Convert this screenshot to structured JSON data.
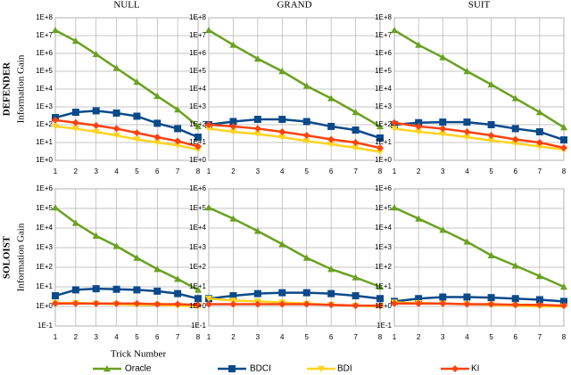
{
  "chart_data": [
    {
      "type": "line",
      "title": "NULL",
      "row_label": "DEFENDER",
      "ylabel": "Information Gain",
      "log": true,
      "grid": true,
      "x": [
        1,
        2,
        3,
        4,
        5,
        6,
        7,
        8
      ],
      "xlim": [
        1,
        8
      ],
      "xticks": [
        1,
        2,
        3,
        4,
        5,
        6,
        7,
        8
      ],
      "ylim": [
        1,
        100000000
      ],
      "yticks": [
        {
          "value": 1,
          "label": "1E+0"
        },
        {
          "value": 10,
          "label": "1E+1"
        },
        {
          "value": 100,
          "label": "1E+2"
        },
        {
          "value": 1000,
          "label": "1E+3"
        },
        {
          "value": 10000,
          "label": "1E+4"
        },
        {
          "value": 100000,
          "label": "1E+5"
        },
        {
          "value": 1000000,
          "label": "1E+6"
        },
        {
          "value": 10000000,
          "label": "1E+7"
        },
        {
          "value": 100000000,
          "label": "1E+8"
        }
      ],
      "series": [
        {
          "name": "Oracle",
          "color": "#6aa121",
          "values": [
            20000000,
            5000000,
            900000,
            150000,
            25000,
            4000,
            700,
            80
          ]
        },
        {
          "name": "BDCI",
          "color": "#0b4a8a",
          "values": [
            250,
            500,
            600,
            450,
            300,
            120,
            60,
            20
          ]
        },
        {
          "name": "BDI",
          "color": "#ffd320",
          "values": [
            80,
            60,
            40,
            25,
            15,
            10,
            7,
            4
          ]
        },
        {
          "name": "KI",
          "color": "#ff420e",
          "values": [
            180,
            130,
            90,
            60,
            35,
            20,
            12,
            6
          ]
        }
      ]
    },
    {
      "type": "line",
      "title": "GRAND",
      "log": true,
      "grid": true,
      "x": [
        1,
        2,
        3,
        4,
        5,
        6,
        7,
        8
      ],
      "xlim": [
        1,
        8
      ],
      "xticks": [
        1,
        2,
        3,
        4,
        5,
        6,
        7,
        8
      ],
      "ylim": [
        1,
        100000000
      ],
      "yticks": [
        {
          "value": 1,
          "label": "1E+0"
        },
        {
          "value": 10,
          "label": "1E+1"
        },
        {
          "value": 100,
          "label": "1E+2"
        },
        {
          "value": 1000,
          "label": "1E+3"
        },
        {
          "value": 10000,
          "label": "1E+4"
        },
        {
          "value": 100000,
          "label": "1E+5"
        },
        {
          "value": 1000000,
          "label": "1E+6"
        },
        {
          "value": 10000000,
          "label": "1E+7"
        },
        {
          "value": 100000000,
          "label": "1E+8"
        }
      ],
      "series": [
        {
          "name": "Oracle",
          "color": "#6aa121",
          "values": [
            20000000,
            3000000,
            500000,
            100000,
            15000,
            3000,
            500,
            80
          ]
        },
        {
          "name": "BDCI",
          "color": "#0b4a8a",
          "values": [
            100,
            150,
            200,
            200,
            150,
            80,
            50,
            18
          ]
        },
        {
          "name": "BDI",
          "color": "#ffd320",
          "values": [
            60,
            40,
            30,
            20,
            12,
            8,
            5,
            3
          ]
        },
        {
          "name": "KI",
          "color": "#ff420e",
          "values": [
            100,
            80,
            60,
            40,
            25,
            15,
            10,
            5
          ]
        }
      ]
    },
    {
      "type": "line",
      "title": "SUIT",
      "log": true,
      "grid": true,
      "x": [
        1,
        2,
        3,
        4,
        5,
        6,
        7,
        8
      ],
      "xlim": [
        1,
        8
      ],
      "xticks": [
        1,
        2,
        3,
        4,
        5,
        6,
        7,
        8
      ],
      "ylim": [
        1,
        100000000
      ],
      "yticks": [
        {
          "value": 1,
          "label": "1E+0"
        },
        {
          "value": 10,
          "label": "1E+1"
        },
        {
          "value": 100,
          "label": "1E+2"
        },
        {
          "value": 1000,
          "label": "1E+3"
        },
        {
          "value": 10000,
          "label": "1E+4"
        },
        {
          "value": 100000,
          "label": "1E+5"
        },
        {
          "value": 1000000,
          "label": "1E+6"
        },
        {
          "value": 10000000,
          "label": "1E+7"
        },
        {
          "value": 100000000,
          "label": "1E+8"
        }
      ],
      "series": [
        {
          "name": "Oracle",
          "color": "#6aa121",
          "values": [
            20000000,
            3000000,
            600000,
            100000,
            18000,
            3000,
            500,
            70
          ]
        },
        {
          "name": "BDCI",
          "color": "#0b4a8a",
          "values": [
            100,
            130,
            140,
            140,
            100,
            60,
            40,
            14
          ]
        },
        {
          "name": "BDI",
          "color": "#ffd320",
          "values": [
            60,
            40,
            30,
            20,
            13,
            9,
            6,
            4
          ]
        },
        {
          "name": "KI",
          "color": "#ff420e",
          "values": [
            130,
            80,
            60,
            40,
            25,
            15,
            10,
            5
          ]
        }
      ]
    },
    {
      "type": "line",
      "row_label": "SOLOIST",
      "ylabel": "Information Gain",
      "xlabel": "Trick Number",
      "log": true,
      "grid": true,
      "x": [
        1,
        2,
        3,
        4,
        5,
        6,
        7,
        8
      ],
      "xlim": [
        1,
        8
      ],
      "xticks": [
        1,
        2,
        3,
        4,
        5,
        6,
        7,
        8
      ],
      "ylim": [
        0.1,
        1000000
      ],
      "yticks": [
        {
          "value": 0.1,
          "label": "1E-1"
        },
        {
          "value": 1,
          "label": "1E+0"
        },
        {
          "value": 10,
          "label": "1E+1"
        },
        {
          "value": 100,
          "label": "1E+2"
        },
        {
          "value": 1000,
          "label": "1E+3"
        },
        {
          "value": 10000,
          "label": "1E+4"
        },
        {
          "value": 100000,
          "label": "1E+5"
        },
        {
          "value": 1000000,
          "label": "1E+6"
        }
      ],
      "series": [
        {
          "name": "Oracle",
          "color": "#6aa121",
          "values": [
            110000,
            18000,
            4000,
            1200,
            300,
            80,
            25,
            7
          ]
        },
        {
          "name": "BDCI",
          "color": "#0b4a8a",
          "values": [
            3.5,
            7,
            8,
            7.5,
            7,
            6,
            4.5,
            2.5
          ]
        },
        {
          "name": "BDI",
          "color": "#ffd320",
          "values": [
            1.5,
            1.5,
            1.4,
            1.3,
            1.2,
            1.2,
            1.1,
            1
          ]
        },
        {
          "name": "KI",
          "color": "#ff420e",
          "values": [
            1.4,
            1.4,
            1.4,
            1.4,
            1.4,
            1.3,
            1.3,
            1.2
          ]
        }
      ]
    },
    {
      "type": "line",
      "log": true,
      "grid": true,
      "x": [
        1,
        2,
        3,
        4,
        5,
        6,
        7,
        8
      ],
      "xlim": [
        1,
        8
      ],
      "xticks": [
        1,
        2,
        3,
        4,
        5,
        6,
        7,
        8
      ],
      "ylim": [
        0.1,
        1000000
      ],
      "yticks": [
        {
          "value": 0.1,
          "label": "1E-1"
        },
        {
          "value": 1,
          "label": "1E+0"
        },
        {
          "value": 10,
          "label": "1E+1"
        },
        {
          "value": 100,
          "label": "1E+2"
        },
        {
          "value": 1000,
          "label": "1E+3"
        },
        {
          "value": 10000,
          "label": "1E+4"
        },
        {
          "value": 100000,
          "label": "1E+5"
        },
        {
          "value": 1000000,
          "label": "1E+6"
        }
      ],
      "series": [
        {
          "name": "Oracle",
          "color": "#6aa121",
          "values": [
            110000,
            30000,
            7000,
            1500,
            300,
            80,
            30,
            10
          ]
        },
        {
          "name": "BDCI",
          "color": "#0b4a8a",
          "values": [
            2.5,
            3.5,
            4.5,
            5,
            5,
            4.5,
            3.5,
            2.5
          ]
        },
        {
          "name": "BDI",
          "color": "#ffd320",
          "values": [
            2.5,
            2,
            1.8,
            1.6,
            1.4,
            1.2,
            1.1,
            1
          ]
        },
        {
          "name": "KI",
          "color": "#ff420e",
          "values": [
            1.3,
            1.3,
            1.3,
            1.3,
            1.3,
            1.2,
            1.1,
            1.1
          ]
        }
      ]
    },
    {
      "type": "line",
      "log": true,
      "grid": true,
      "x": [
        1,
        2,
        3,
        4,
        5,
        6,
        7,
        8
      ],
      "xlim": [
        1,
        8
      ],
      "xticks": [
        1,
        2,
        3,
        4,
        5,
        6,
        7,
        8
      ],
      "ylim": [
        0.1,
        1000000
      ],
      "yticks": [
        {
          "value": 0.1,
          "label": "1E-1"
        },
        {
          "value": 1,
          "label": "1E+0"
        },
        {
          "value": 10,
          "label": "1E+1"
        },
        {
          "value": 100,
          "label": "1E+2"
        },
        {
          "value": 1000,
          "label": "1E+3"
        },
        {
          "value": 10000,
          "label": "1E+4"
        },
        {
          "value": 100000,
          "label": "1E+5"
        },
        {
          "value": 1000000,
          "label": "1E+6"
        }
      ],
      "series": [
        {
          "name": "Oracle",
          "color": "#6aa121",
          "values": [
            110000,
            30000,
            8000,
            2000,
            400,
            120,
            35,
            10
          ]
        },
        {
          "name": "BDCI",
          "color": "#0b4a8a",
          "values": [
            1.8,
            2.5,
            3,
            3,
            2.8,
            2.5,
            2.2,
            1.8
          ]
        },
        {
          "name": "BDI",
          "color": "#ffd320",
          "values": [
            1.6,
            1.5,
            1.4,
            1.3,
            1.2,
            1.1,
            1,
            1
          ]
        },
        {
          "name": "KI",
          "color": "#ff420e",
          "values": [
            1.4,
            1.4,
            1.4,
            1.3,
            1.3,
            1.2,
            1.2,
            1.1
          ]
        }
      ]
    }
  ]
}
